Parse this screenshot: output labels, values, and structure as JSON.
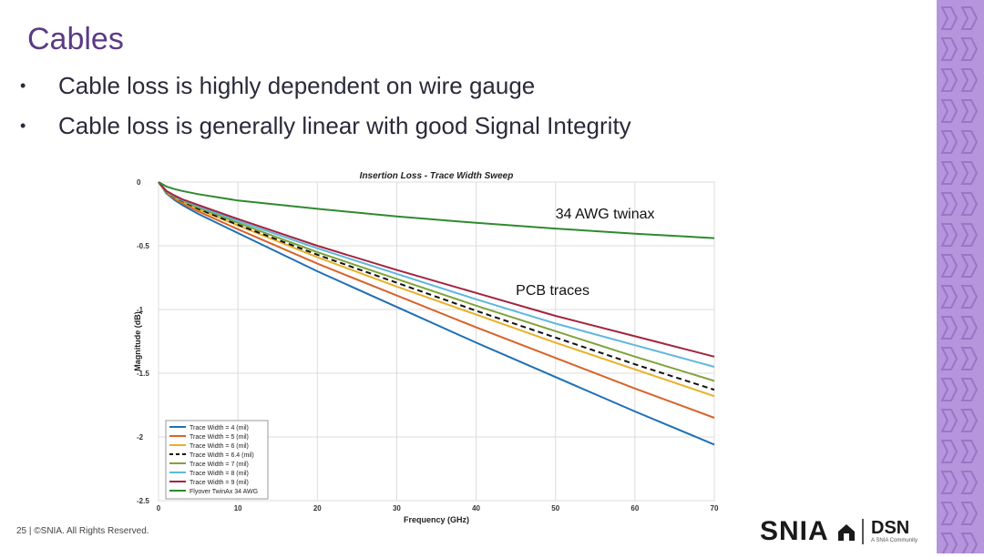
{
  "slide": {
    "title": "Cables",
    "bullets": [
      "Cable loss is highly dependent on wire gauge",
      "Cable loss is generally linear with good Signal Integrity"
    ],
    "footer": "25 | ©SNIA. All Rights Reserved.",
    "logo_primary": "SNIA",
    "logo_secondary": "DSN",
    "logo_tagline": "A SNIA Community",
    "colors": {
      "title": "#5b3b86",
      "band": "#b795dc"
    }
  },
  "chart_data": {
    "type": "line",
    "title": "Insertion Loss - Trace Width Sweep",
    "xlabel": "Frequency (GHz)",
    "ylabel": "Magnitude (dB)",
    "xlim": [
      0,
      70
    ],
    "ylim": [
      -2.5,
      0
    ],
    "xticks": [
      0,
      10,
      20,
      30,
      40,
      50,
      60,
      70
    ],
    "yticks": [
      0,
      -0.5,
      -1,
      -1.5,
      -2,
      -2.5
    ],
    "xtick_labels": [
      "0",
      "10",
      "20",
      "30",
      "40",
      "50",
      "60",
      "70"
    ],
    "ytick_labels": [
      "0",
      "-0.5",
      "-1",
      "-1.5",
      "-2",
      "-2.5"
    ],
    "grid": true,
    "legend_position": "bottom-left",
    "x": [
      0,
      1,
      2,
      3,
      5,
      10,
      20,
      30,
      40,
      50,
      60,
      70
    ],
    "series": [
      {
        "name": "Trace Width = 4 (mil)",
        "color": "#1f6fb4",
        "dashed": false,
        "values": [
          0,
          -0.09,
          -0.14,
          -0.18,
          -0.25,
          -0.4,
          -0.7,
          -0.98,
          -1.26,
          -1.53,
          -1.8,
          -2.06
        ]
      },
      {
        "name": "Trace Width = 5 (mil)",
        "color": "#d9622b",
        "dashed": false,
        "values": [
          0,
          -0.085,
          -0.13,
          -0.165,
          -0.23,
          -0.37,
          -0.64,
          -0.89,
          -1.14,
          -1.38,
          -1.62,
          -1.85
        ]
      },
      {
        "name": "Trace Width = 6 (mil)",
        "color": "#e8b02a",
        "dashed": false,
        "values": [
          0,
          -0.08,
          -0.12,
          -0.155,
          -0.215,
          -0.34,
          -0.59,
          -0.82,
          -1.04,
          -1.26,
          -1.47,
          -1.68
        ]
      },
      {
        "name": "Trace Width = 6.4 (mil)",
        "color": "#111111",
        "dashed": true,
        "values": [
          0,
          -0.078,
          -0.118,
          -0.15,
          -0.21,
          -0.335,
          -0.57,
          -0.79,
          -1.01,
          -1.22,
          -1.43,
          -1.63
        ]
      },
      {
        "name": "Trace Width = 7 (mil)",
        "color": "#7fa33a",
        "dashed": false,
        "values": [
          0,
          -0.076,
          -0.115,
          -0.145,
          -0.2,
          -0.32,
          -0.55,
          -0.76,
          -0.97,
          -1.17,
          -1.37,
          -1.56
        ]
      },
      {
        "name": "Trace Width = 8 (mil)",
        "color": "#5fb6de",
        "dashed": false,
        "values": [
          0,
          -0.073,
          -0.11,
          -0.14,
          -0.19,
          -0.305,
          -0.52,
          -0.72,
          -0.92,
          -1.11,
          -1.28,
          -1.45
        ]
      },
      {
        "name": "Trace Width = 9 (mil)",
        "color": "#a3243f",
        "dashed": false,
        "values": [
          0,
          -0.07,
          -0.105,
          -0.135,
          -0.18,
          -0.29,
          -0.5,
          -0.69,
          -0.87,
          -1.05,
          -1.21,
          -1.37
        ]
      },
      {
        "name": "Flyover TwinAx 34 AWG",
        "color": "#2f8a2f",
        "dashed": false,
        "values": [
          0,
          -0.035,
          -0.055,
          -0.07,
          -0.095,
          -0.145,
          -0.21,
          -0.27,
          -0.32,
          -0.365,
          -0.405,
          -0.44
        ]
      }
    ],
    "annotations": [
      {
        "text": "34 AWG twinax",
        "x": 50,
        "y": -0.25
      },
      {
        "text": "PCB traces",
        "x": 45,
        "y": -0.85
      }
    ]
  }
}
